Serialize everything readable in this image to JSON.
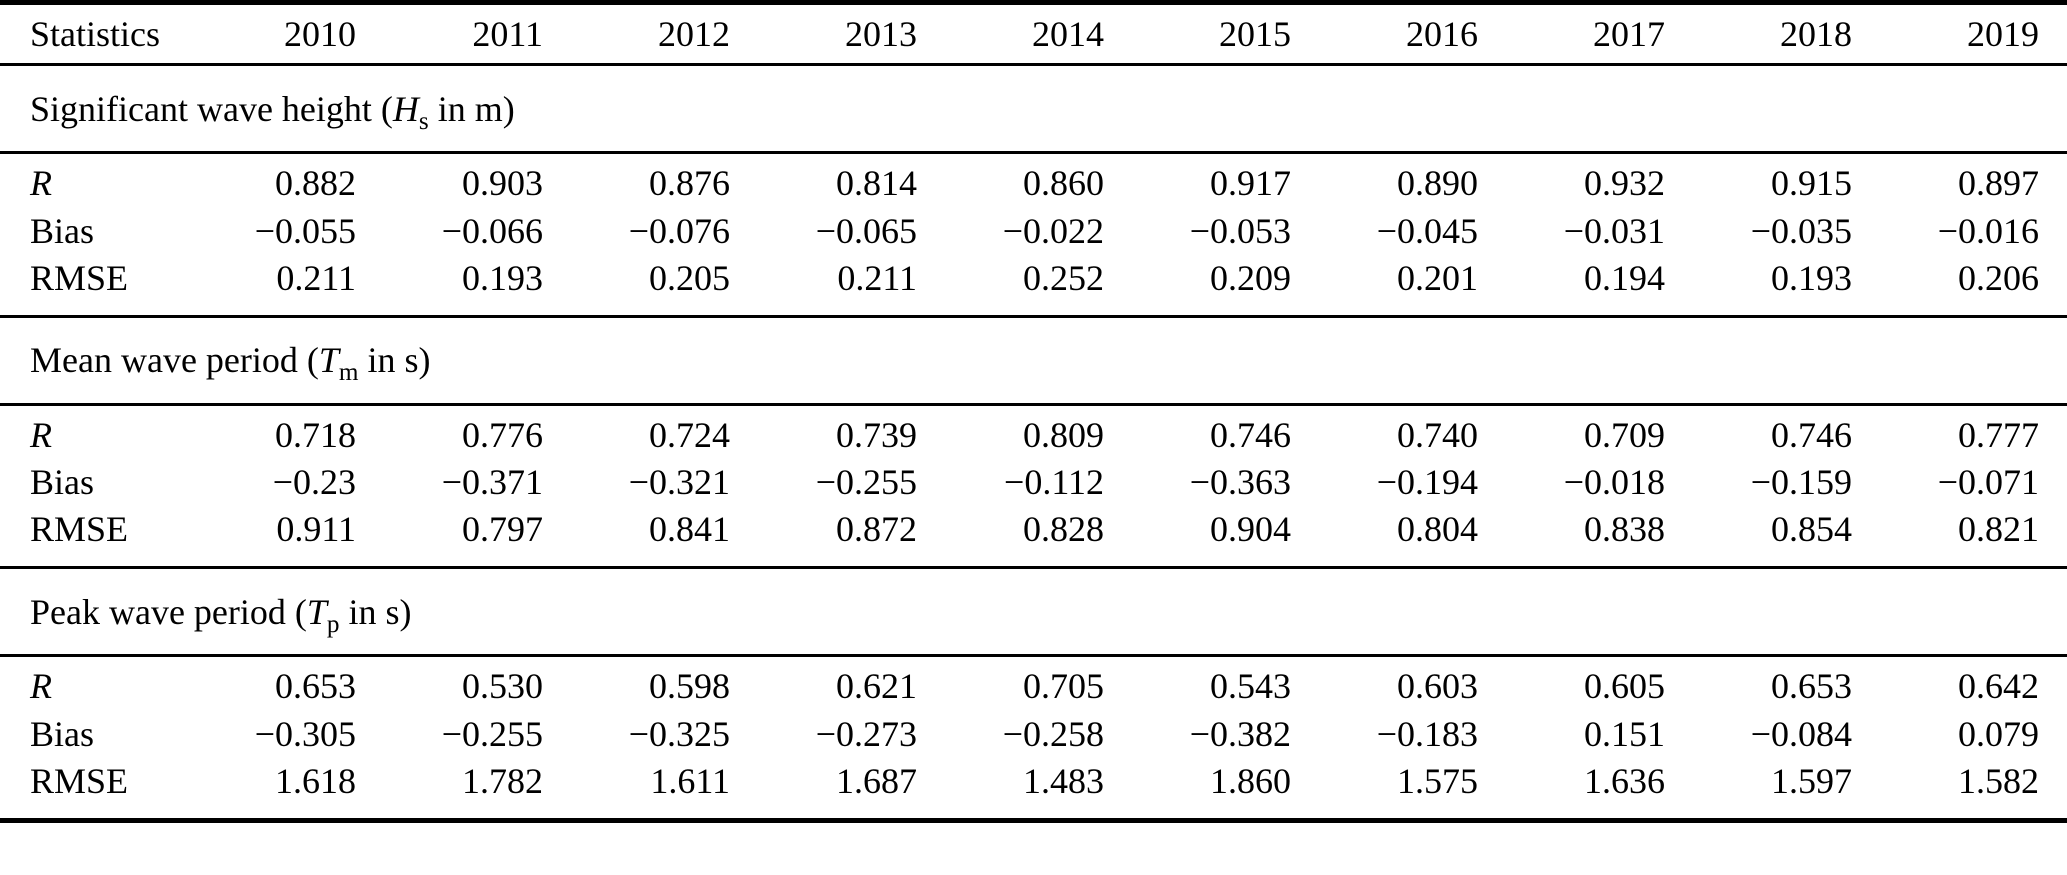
{
  "table": {
    "header": {
      "label": "Statistics",
      "years": [
        "2010",
        "2011",
        "2012",
        "2013",
        "2014",
        "2015",
        "2016",
        "2017",
        "2018",
        "2019"
      ]
    },
    "sections": [
      {
        "title": {
          "prefix": "Significant wave height (",
          "symbol": "H",
          "subscript": "s",
          "suffix": " in m)"
        },
        "rows": [
          {
            "label": "R",
            "values": [
              "0.882",
              "0.903",
              "0.876",
              "0.814",
              "0.860",
              "0.917",
              "0.890",
              "0.932",
              "0.915",
              "0.897"
            ]
          },
          {
            "label": "Bias",
            "values": [
              "−0.055",
              "−0.066",
              "−0.076",
              "−0.065",
              "−0.022",
              "−0.053",
              "−0.045",
              "−0.031",
              "−0.035",
              "−0.016"
            ]
          },
          {
            "label": "RMSE",
            "values": [
              "0.211",
              "0.193",
              "0.205",
              "0.211",
              "0.252",
              "0.209",
              "0.201",
              "0.194",
              "0.193",
              "0.206"
            ]
          }
        ]
      },
      {
        "title": {
          "prefix": "Mean wave period (",
          "symbol": "T",
          "subscript": "m",
          "suffix": " in s)"
        },
        "rows": [
          {
            "label": "R",
            "values": [
              "0.718",
              "0.776",
              "0.724",
              "0.739",
              "0.809",
              "0.746",
              "0.740",
              "0.709",
              "0.746",
              "0.777"
            ]
          },
          {
            "label": "Bias",
            "values": [
              "−0.23",
              "−0.371",
              "−0.321",
              "−0.255",
              "−0.112",
              "−0.363",
              "−0.194",
              "−0.018",
              "−0.159",
              "−0.071"
            ]
          },
          {
            "label": "RMSE",
            "values": [
              "0.911",
              "0.797",
              "0.841",
              "0.872",
              "0.828",
              "0.904",
              "0.804",
              "0.838",
              "0.854",
              "0.821"
            ]
          }
        ]
      },
      {
        "title": {
          "prefix": "Peak wave period (",
          "symbol": "T",
          "subscript": "p",
          "suffix": " in s)"
        },
        "rows": [
          {
            "label": "R",
            "values": [
              "0.653",
              "0.530",
              "0.598",
              "0.621",
              "0.705",
              "0.543",
              "0.603",
              "0.605",
              "0.653",
              "0.642"
            ]
          },
          {
            "label": "Bias",
            "values": [
              "−0.305",
              "−0.255",
              "−0.325",
              "−0.273",
              "−0.258",
              "−0.382",
              "−0.183",
              "0.151",
              "−0.084",
              "0.079"
            ]
          },
          {
            "label": "RMSE",
            "values": [
              "1.618",
              "1.782",
              "1.611",
              "1.687",
              "1.483",
              "1.860",
              "1.575",
              "1.636",
              "1.597",
              "1.582"
            ]
          }
        ]
      }
    ]
  }
}
